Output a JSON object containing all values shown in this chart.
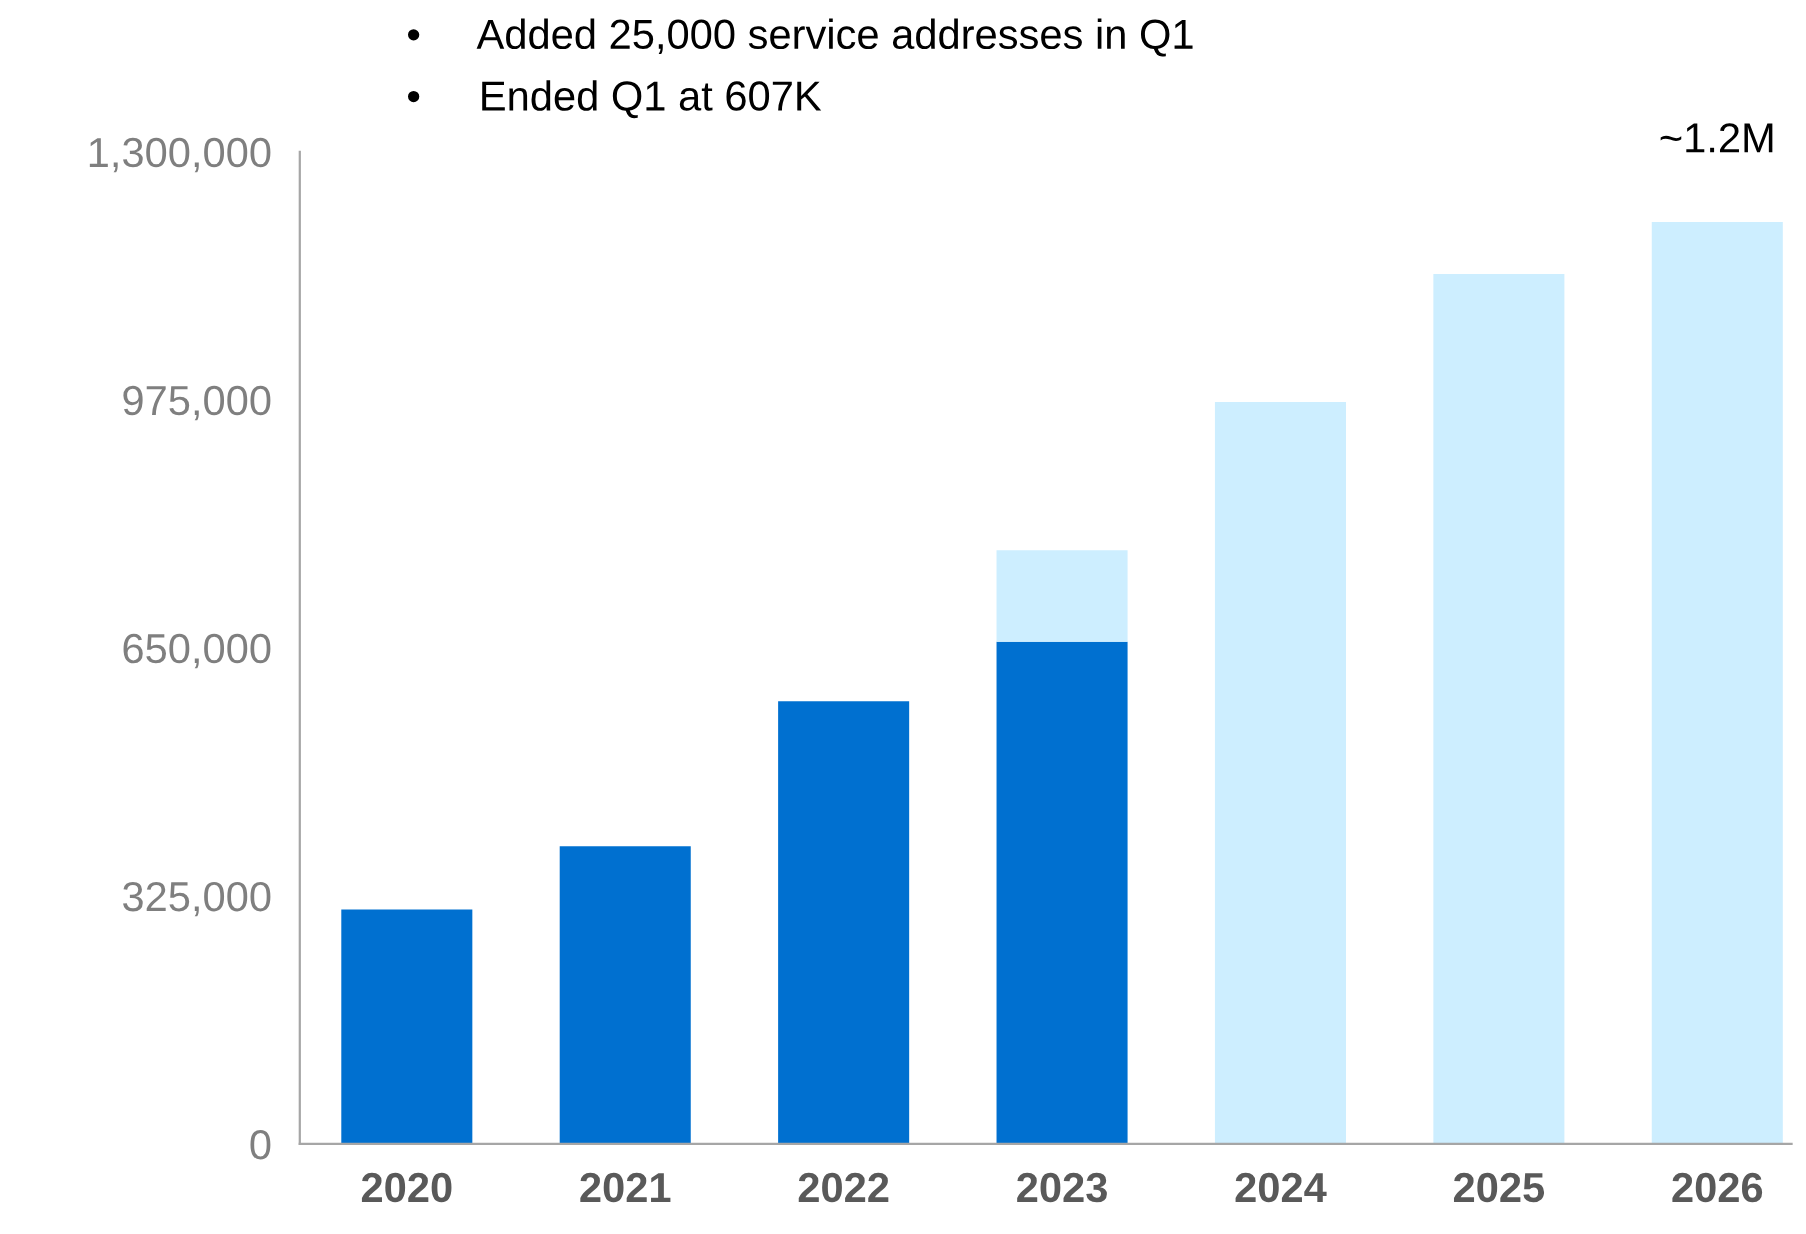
{
  "chart_data": {
    "type": "bar",
    "stacked": true,
    "categories": [
      "2020",
      "2021",
      "2022",
      "2023",
      "2024",
      "2025",
      "2026"
    ],
    "series": [
      {
        "color": "#0070d0",
        "values": [
          307000,
          390000,
          580000,
          658000,
          null,
          null,
          null
        ]
      },
      {
        "color": "#cdeeff",
        "values": [
          null,
          null,
          null,
          120000,
          972000,
          1140000,
          1208000
        ]
      }
    ],
    "ylim": [
      0,
      1300000
    ],
    "yticks": [
      {
        "value": 0,
        "label": "0"
      },
      {
        "value": 325000,
        "label": "325,000"
      },
      {
        "value": 650000,
        "label": "650,000"
      },
      {
        "value": 975000,
        "label": "975,000"
      },
      {
        "value": 1300000,
        "label": "1,300,000"
      }
    ],
    "grid": false,
    "legend": false,
    "annotations": [
      "•     Added 25,000 service addresses in Q1",
      "•     Ended Q1 at 607K",
      {
        "text": "~1.2M",
        "x": "2026",
        "y": 1208000
      }
    ]
  }
}
